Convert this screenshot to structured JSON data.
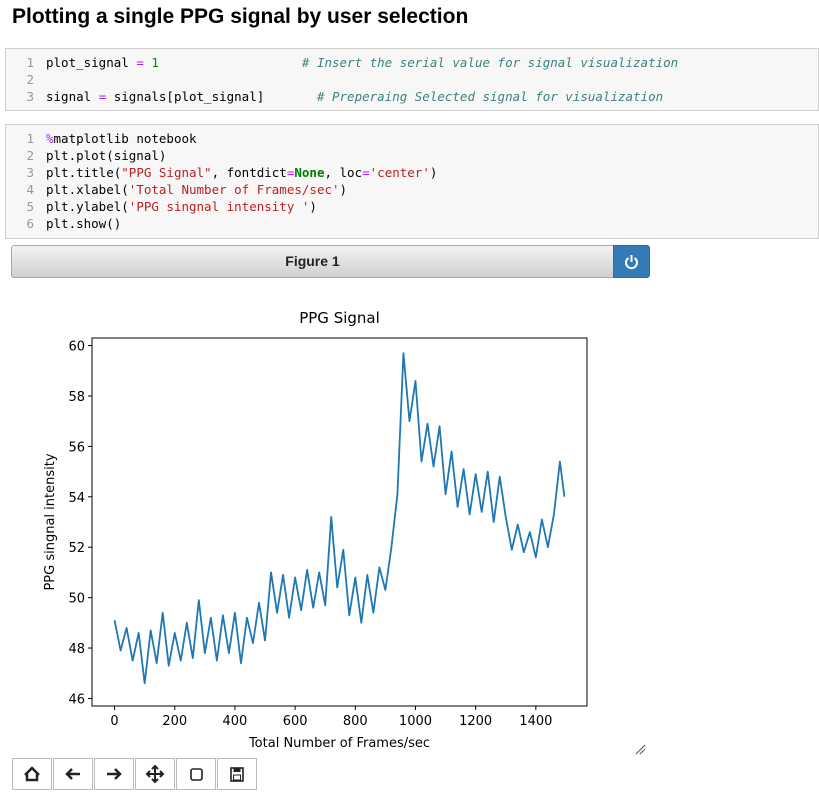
{
  "header": {
    "title": "Plotting a single PPG signal by user selection"
  },
  "cells": [
    {
      "lines": [
        {
          "number": 1,
          "tokens": [
            {
              "text": "plot_signal "
            },
            {
              "text": "=",
              "color": "#aa22ff"
            },
            {
              "text": " 1",
              "color": "#008800"
            },
            {
              "text": "                   # Insert the serial value for signal visualization",
              "color": "#408080",
              "italic": true
            }
          ]
        },
        {
          "number": 2,
          "tokens": []
        },
        {
          "number": 3,
          "tokens": [
            {
              "text": "signal "
            },
            {
              "text": "=",
              "color": "#aa22ff"
            },
            {
              "text": " signals[plot_signal]"
            },
            {
              "text": "       # Preperaing Selected signal for visualization",
              "color": "#408080",
              "italic": true
            }
          ]
        }
      ]
    },
    {
      "lines": [
        {
          "number": 1,
          "tokens": [
            {
              "text": "%",
              "color": "#aa22ff"
            },
            {
              "text": "matplotlib notebook"
            }
          ]
        },
        {
          "number": 2,
          "tokens": [
            {
              "text": "plt.plot(signal)"
            }
          ]
        },
        {
          "number": 3,
          "tokens": [
            {
              "text": "plt.title("
            },
            {
              "text": "\"PPG Signal\"",
              "color": "#ba2121"
            },
            {
              "text": ", fontdict"
            },
            {
              "text": "=",
              "color": "#aa22ff"
            },
            {
              "text": "None",
              "color": "#008000",
              "bold": true
            },
            {
              "text": ", loc"
            },
            {
              "text": "=",
              "color": "#aa22ff"
            },
            {
              "text": "'center'",
              "color": "#ba2121"
            },
            {
              "text": ")"
            }
          ]
        },
        {
          "number": 4,
          "tokens": [
            {
              "text": "plt.xlabel("
            },
            {
              "text": "'Total Number of Frames/sec'",
              "color": "#ba2121"
            },
            {
              "text": ")"
            }
          ]
        },
        {
          "number": 5,
          "tokens": [
            {
              "text": "plt.ylabel("
            },
            {
              "text": "'PPG singnal intensity '",
              "color": "#ba2121"
            },
            {
              "text": ")"
            }
          ]
        },
        {
          "number": 6,
          "tokens": [
            {
              "text": "plt.show()"
            }
          ]
        }
      ]
    }
  ],
  "figure": {
    "label": "Figure 1"
  },
  "chart_data": {
    "type": "line",
    "title": "PPG Signal",
    "x_label": "Total Number of Frames/sec",
    "y_label": "PPG singnal intensity",
    "color": "#1f77b4",
    "x": [
      0,
      20,
      40,
      60,
      80,
      100,
      120,
      140,
      160,
      180,
      200,
      220,
      240,
      260,
      280,
      300,
      320,
      340,
      360,
      380,
      400,
      420,
      440,
      460,
      480,
      500,
      520,
      540,
      560,
      580,
      600,
      620,
      640,
      660,
      680,
      700,
      720,
      740,
      760,
      780,
      800,
      820,
      840,
      860,
      880,
      900,
      920,
      940,
      960,
      980,
      1000,
      1020,
      1040,
      1060,
      1080,
      1100,
      1120,
      1140,
      1160,
      1180,
      1200,
      1220,
      1240,
      1260,
      1280,
      1300,
      1320,
      1340,
      1360,
      1380,
      1400,
      1420,
      1440,
      1460,
      1480,
      1495
    ],
    "values": [
      49.1,
      47.9,
      48.8,
      47.5,
      48.6,
      46.6,
      48.7,
      47.4,
      49.4,
      47.3,
      48.6,
      47.5,
      49.0,
      47.6,
      49.9,
      47.8,
      49.2,
      47.5,
      49.3,
      47.8,
      49.4,
      47.4,
      49.2,
      48.2,
      49.8,
      48.3,
      51.0,
      49.4,
      50.9,
      49.2,
      50.8,
      49.5,
      51.1,
      49.6,
      51.0,
      49.7,
      53.2,
      50.4,
      51.9,
      49.3,
      50.8,
      49.0,
      50.9,
      49.4,
      51.2,
      50.3,
      52.0,
      54.1,
      59.7,
      57.0,
      58.6,
      55.4,
      56.9,
      55.2,
      56.8,
      54.1,
      55.8,
      53.6,
      55.1,
      53.3,
      54.9,
      53.4,
      55.0,
      53.0,
      54.8,
      53.2,
      51.9,
      52.9,
      51.8,
      52.6,
      51.6,
      53.1,
      52.0,
      53.3,
      55.4,
      54.0
    ],
    "xlim": [
      -75,
      1570
    ],
    "ylim": [
      45.7,
      60.3
    ],
    "xticks": [
      0,
      200,
      400,
      600,
      800,
      1000,
      1200,
      1400
    ],
    "yticks": [
      46,
      48,
      50,
      52,
      54,
      56,
      58,
      60
    ]
  }
}
